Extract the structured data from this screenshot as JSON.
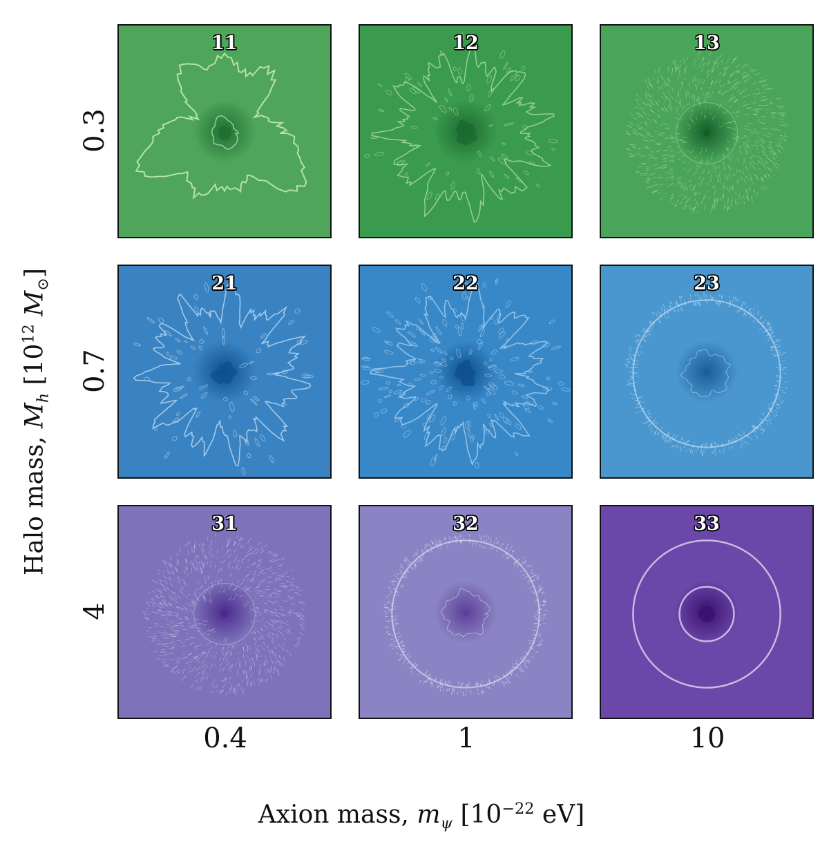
{
  "figure": {
    "xlabel": {
      "prefix": "Axion mass, ",
      "symbol": "m",
      "subscript": "ψ",
      "bracket_open": " [10",
      "exponent": "−22",
      "unit": " eV]"
    },
    "ylabel": {
      "prefix": "Halo mass, ",
      "symbol": "M",
      "subscript": "h",
      "bracket_open": " [10",
      "exponent": "12",
      "unit_symbol": " M",
      "unit_subscript": "⊙",
      "bracket_close": "]"
    },
    "columns": [
      "0.4",
      "1",
      "10"
    ],
    "rows": [
      "0.3",
      "0.7",
      "4"
    ],
    "panels": [
      {
        "label": "11",
        "bg": "#4fa65a",
        "line": "#c8ecc0",
        "core": "#1f6e33",
        "style": "blob"
      },
      {
        "label": "12",
        "bg": "#3a9a4e",
        "line": "#a9dca3",
        "core": "#1b6a30",
        "style": "spiky"
      },
      {
        "label": "13",
        "bg": "#4aa55a",
        "line": "#c6ebbf",
        "core": "#155e2a",
        "style": "ring-fuzzy"
      },
      {
        "label": "21",
        "bg": "#3a83c2",
        "line": "#bfdcf2",
        "core": "#0e4f8f",
        "style": "spiky"
      },
      {
        "label": "22",
        "bg": "#3888c8",
        "line": "#a9d0ee",
        "core": "#0e4f8f",
        "style": "spiky-dense"
      },
      {
        "label": "23",
        "bg": "#4a97d0",
        "line": "#d4e8f6",
        "core": "#1a5c99",
        "style": "ring"
      },
      {
        "label": "31",
        "bg": "#7e73bb",
        "line": "#e1dcf2",
        "core": "#4b2a8c",
        "style": "ring-fuzzy"
      },
      {
        "label": "32",
        "bg": "#8b84c4",
        "line": "#ece9f7",
        "core": "#5c3f99",
        "style": "ring"
      },
      {
        "label": "33",
        "bg": "#6a47a8",
        "line": "#d9d0ee",
        "core": "#3a0f6e",
        "style": "double-ring"
      }
    ]
  }
}
